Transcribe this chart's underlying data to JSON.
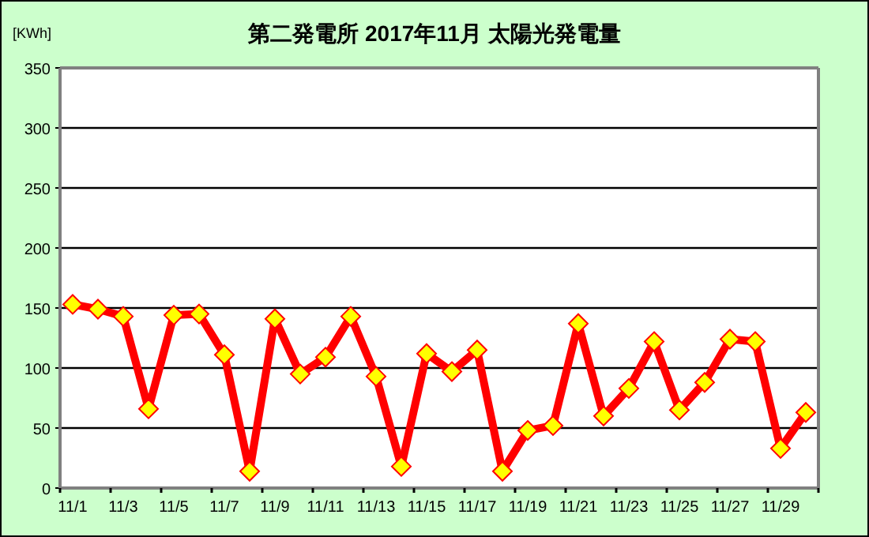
{
  "chart_data": {
    "type": "line",
    "title": "第二発電所  2017年11月 太陽光発電量",
    "ylabel": "[KWh]",
    "categories": [
      "11/1",
      null,
      "11/3",
      null,
      "11/5",
      null,
      "11/7",
      null,
      "11/9",
      null,
      "11/11",
      null,
      "11/13",
      null,
      "11/15",
      null,
      "11/17",
      null,
      "11/19",
      null,
      "11/21",
      null,
      "11/23",
      null,
      "11/25",
      null,
      "11/27",
      null,
      "11/29",
      null
    ],
    "series": [
      {
        "color": "#ff0000",
        "values": [
          153,
          149,
          143,
          66,
          144,
          145,
          111,
          14,
          141,
          95,
          109,
          143,
          93,
          18,
          112,
          97,
          115,
          14,
          48,
          52,
          137,
          60,
          83,
          122,
          65,
          88,
          124,
          122,
          33,
          63
        ]
      }
    ],
    "ylim": [
      0,
      350
    ],
    "yticks": [
      0,
      50,
      100,
      150,
      200,
      250,
      300,
      350
    ],
    "grid": "y",
    "marker": "diamond",
    "line_style": "solid"
  }
}
